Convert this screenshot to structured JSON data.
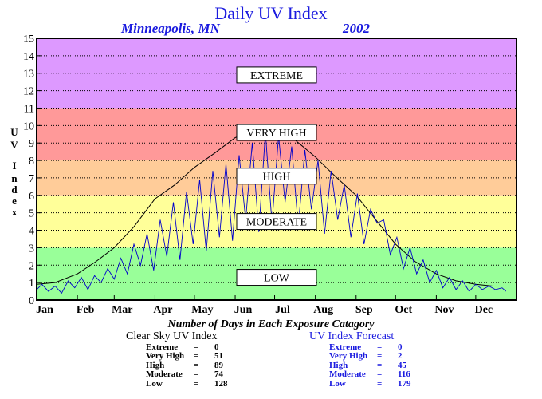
{
  "title": "Daily UV Index",
  "subtitle_location": "Minneapolis, MN",
  "subtitle_year": "2002",
  "stats_title": "Number of Days in Each Exposure Catagory",
  "clear_sky": {
    "title": "Clear Sky UV Index",
    "rows": [
      {
        "label": "Extreme",
        "eq": "=",
        "value": "0"
      },
      {
        "label": "Very High",
        "eq": "=",
        "value": "51"
      },
      {
        "label": "High",
        "eq": "=",
        "value": "89"
      },
      {
        "label": "Moderate",
        "eq": "=",
        "value": "74"
      },
      {
        "label": "Low",
        "eq": "=",
        "value": "128"
      }
    ]
  },
  "forecast": {
    "title": "UV Index Forecast",
    "rows": [
      {
        "label": "Extreme",
        "eq": "=",
        "value": "0"
      },
      {
        "label": "Very High",
        "eq": "=",
        "value": "2"
      },
      {
        "label": "High",
        "eq": "=",
        "value": "45"
      },
      {
        "label": "Moderate",
        "eq": "=",
        "value": "116"
      },
      {
        "label": "Low",
        "eq": "=",
        "value": "179"
      }
    ]
  },
  "chart_data": {
    "type": "line",
    "ylabel": "UV Index",
    "ylim": [
      0,
      15
    ],
    "yticks": [
      0,
      1,
      2,
      3,
      4,
      5,
      6,
      7,
      8,
      9,
      10,
      11,
      12,
      13,
      14,
      15
    ],
    "xlim": [
      1,
      366
    ],
    "months": [
      {
        "label": "Jan",
        "day": 1
      },
      {
        "label": "Feb",
        "day": 32
      },
      {
        "label": "Mar",
        "day": 60
      },
      {
        "label": "Apr",
        "day": 91
      },
      {
        "label": "May",
        "day": 121
      },
      {
        "label": "Jun",
        "day": 152
      },
      {
        "label": "Jul",
        "day": 182
      },
      {
        "label": "Aug",
        "day": 213
      },
      {
        "label": "Sep",
        "day": 244
      },
      {
        "label": "Oct",
        "day": 274
      },
      {
        "label": "Nov",
        "day": 305
      },
      {
        "label": "Dec",
        "day": 335
      }
    ],
    "grid": true,
    "categories": [
      {
        "label": "LOW",
        "range": [
          0,
          3
        ],
        "color": "#99ff99"
      },
      {
        "label": "MODERATE",
        "range": [
          3,
          6
        ],
        "color": "#ffff99"
      },
      {
        "label": "HIGH",
        "range": [
          6,
          8
        ],
        "color": "#ffcc99"
      },
      {
        "label": "VERY HIGH",
        "range": [
          8,
          11
        ],
        "color": "#ff9999"
      },
      {
        "label": "EXTREME",
        "range": [
          11,
          15
        ],
        "color": "#dd99ff"
      }
    ],
    "series": [
      {
        "color": "#000000",
        "x": [
          1,
          15,
          32,
          46,
          60,
          75,
          91,
          106,
          121,
          136,
          152,
          167,
          175,
          182,
          197,
          213,
          228,
          244,
          259,
          274,
          289,
          305,
          320,
          335,
          348,
          358
        ],
        "values": [
          0.9,
          1.0,
          1.5,
          2.2,
          3.0,
          4.2,
          5.8,
          6.6,
          7.6,
          8.4,
          9.3,
          9.8,
          10.0,
          9.8,
          9.2,
          8.2,
          7.1,
          6.0,
          4.6,
          3.2,
          2.2,
          1.5,
          1.1,
          0.9,
          0.8,
          0.8
        ]
      },
      {
        "color": "#0000cc",
        "x": [
          1,
          5,
          10,
          15,
          20,
          25,
          30,
          35,
          40,
          45,
          50,
          55,
          60,
          65,
          70,
          75,
          80,
          85,
          90,
          95,
          100,
          105,
          110,
          115,
          120,
          125,
          130,
          135,
          140,
          145,
          150,
          155,
          160,
          165,
          170,
          175,
          180,
          185,
          190,
          195,
          200,
          205,
          210,
          215,
          220,
          225,
          230,
          235,
          240,
          245,
          250,
          255,
          260,
          265,
          270,
          275,
          280,
          285,
          290,
          295,
          300,
          305,
          310,
          315,
          320,
          325,
          330,
          335,
          340,
          345,
          350,
          355,
          358
        ],
        "values": [
          0.6,
          0.9,
          0.5,
          0.8,
          0.4,
          1.1,
          0.7,
          1.3,
          0.6,
          1.4,
          1.0,
          1.8,
          1.2,
          2.4,
          1.5,
          3.2,
          2.0,
          3.8,
          1.7,
          4.6,
          2.5,
          5.6,
          2.3,
          6.2,
          3.2,
          6.9,
          2.8,
          7.4,
          3.6,
          7.8,
          3.4,
          8.3,
          4.6,
          9.0,
          3.9,
          9.6,
          4.4,
          9.4,
          5.6,
          8.8,
          4.2,
          8.6,
          5.2,
          8.0,
          3.8,
          7.4,
          4.6,
          6.6,
          3.6,
          6.1,
          3.2,
          5.2,
          4.4,
          4.6,
          2.6,
          3.6,
          1.8,
          3.0,
          1.5,
          2.3,
          1.0,
          1.7,
          0.7,
          1.3,
          0.6,
          1.1,
          0.5,
          0.9,
          0.6,
          0.8,
          0.6,
          0.7,
          0.5
        ]
      }
    ]
  }
}
